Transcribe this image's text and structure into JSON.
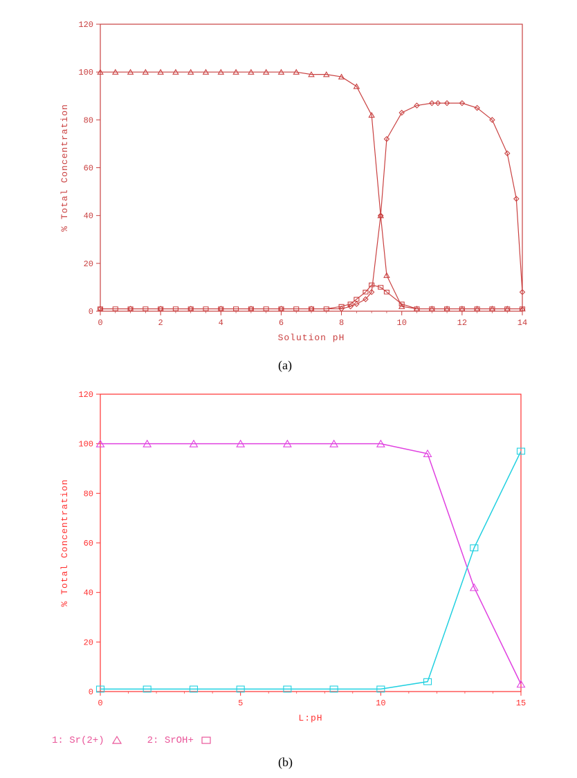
{
  "chart_a": {
    "type": "line",
    "xlabel": "Solution pH",
    "ylabel": "% Total Concentration",
    "label_fontsize": 13,
    "tick_fontsize": 12,
    "xlim": [
      0,
      14
    ],
    "ylim": [
      0,
      120
    ],
    "xtick_step": 2,
    "ytick_step": 20,
    "background_color": "#ffffff",
    "axis_color": "#c94040",
    "text_color": "#c94040",
    "line_width": 1.2,
    "series": [
      {
        "name": "triangle",
        "marker": "triangle",
        "marker_size": 7,
        "color": "#c94040",
        "x": [
          0,
          0.5,
          1,
          1.5,
          2,
          2.5,
          3,
          3.5,
          4,
          4.5,
          5,
          5.5,
          6,
          6.5,
          7,
          7.5,
          8,
          8.5,
          9,
          9.3,
          9.5,
          10,
          10.5,
          11,
          11.5,
          12,
          12.5,
          13,
          13.5,
          14
        ],
        "y": [
          100,
          100,
          100,
          100,
          100,
          100,
          100,
          100,
          100,
          100,
          100,
          100,
          100,
          100,
          99,
          99,
          98,
          94,
          82,
          40,
          15,
          2,
          1,
          1,
          1,
          1,
          1,
          1,
          1,
          1
        ]
      },
      {
        "name": "diamond",
        "marker": "diamond",
        "marker_size": 7,
        "color": "#c94040",
        "x": [
          0,
          1,
          2,
          3,
          4,
          5,
          6,
          7,
          8,
          8.3,
          8.5,
          8.8,
          9,
          9.3,
          9.5,
          10,
          10.5,
          11,
          11.2,
          11.5,
          12,
          12.5,
          13,
          13.5,
          13.8,
          14
        ],
        "y": [
          1,
          1,
          1,
          1,
          1,
          1,
          1,
          1,
          1,
          2,
          3,
          5,
          8,
          40,
          72,
          83,
          86,
          87,
          87,
          87,
          87,
          85,
          80,
          66,
          47,
          8
        ]
      },
      {
        "name": "square",
        "marker": "square",
        "marker_size": 7,
        "color": "#c94040",
        "x": [
          0,
          0.5,
          1,
          1.5,
          2,
          2.5,
          3,
          3.5,
          4,
          4.5,
          5,
          5.5,
          6,
          6.5,
          7,
          7.5,
          8,
          8.3,
          8.5,
          8.8,
          9,
          9.3,
          9.5,
          10,
          10.5,
          11,
          11.5,
          12,
          12.5,
          13,
          13.5,
          14
        ],
        "y": [
          1,
          1,
          1,
          1,
          1,
          1,
          1,
          1,
          1,
          1,
          1,
          1,
          1,
          1,
          1,
          1,
          2,
          3,
          5,
          8,
          11,
          10,
          8,
          3,
          1,
          1,
          1,
          1,
          1,
          1,
          1,
          1
        ]
      }
    ]
  },
  "chart_b": {
    "type": "line",
    "xlabel": "L:pH",
    "ylabel": "% Total Concentration",
    "label_fontsize": 13,
    "tick_fontsize": 12,
    "xlim": [
      0,
      15
    ],
    "ylim": [
      0,
      120
    ],
    "xtick_step": 5,
    "ytick_step": 20,
    "background_color": "#ffffff",
    "axis_color": "#ff3030",
    "text_color": "#ff3030",
    "line_width": 1.5,
    "series": [
      {
        "name": "Sr(2+)",
        "marker": "triangle",
        "marker_size": 10,
        "color": "#e040e0",
        "x": [
          0,
          1.67,
          3.33,
          5,
          6.67,
          8.33,
          10,
          11.67,
          13.33,
          15
        ],
        "y": [
          100,
          100,
          100,
          100,
          100,
          100,
          100,
          96,
          42,
          3
        ]
      },
      {
        "name": "SrOH+",
        "marker": "square",
        "marker_size": 11,
        "color": "#20d0e0",
        "x": [
          0,
          1.67,
          3.33,
          5,
          6.67,
          8.33,
          10,
          11.67,
          13.33,
          15
        ],
        "y": [
          1,
          1,
          1,
          1,
          1,
          1,
          1,
          4,
          58,
          97
        ]
      }
    ]
  },
  "captions": {
    "a": "(a)",
    "b": "(b)"
  },
  "legend_b": {
    "item1_label": "1: Sr(2+)",
    "item2_label": "2: SrOH+",
    "item1_marker": "triangle",
    "item2_marker": "square",
    "color": "#e95599"
  }
}
